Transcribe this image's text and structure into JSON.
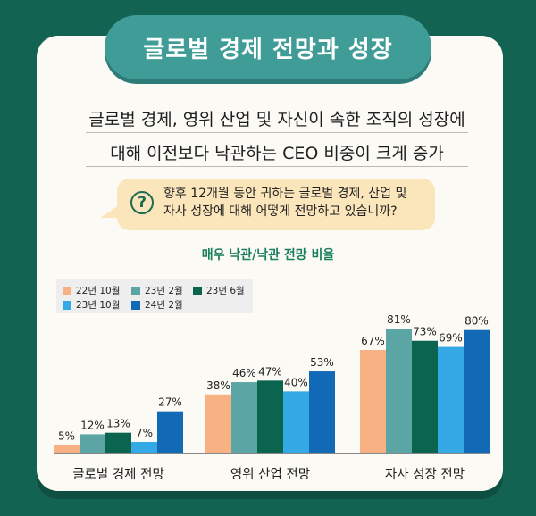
{
  "header": {
    "title": "글로벌 경제 전망과 성장"
  },
  "headline": {
    "line1": "글로벌 경제, 영위 산업 및 자신이 속한 조직의 성장에",
    "line2": "대해 이전보다 낙관하는 CEO 비중이 크게 증가"
  },
  "question": {
    "icon": "question-icon",
    "line1": "향후 12개월 동안 귀하는 글로벌 경제, 산업 및",
    "line2": "자사 성장에 대해 어떻게 전망하고 있습니까?"
  },
  "chart_data": {
    "type": "bar",
    "title": "매우 낙관/낙관 전망 비율",
    "categories": [
      "글로벌 경제 전망",
      "영위 산업 전망",
      "자사 성장 전망"
    ],
    "series": [
      {
        "name": "22년 10월",
        "color": "#f7b183",
        "values": [
          5,
          38,
          67
        ]
      },
      {
        "name": "23년 2월",
        "color": "#5ba5a4",
        "values": [
          12,
          46,
          81
        ]
      },
      {
        "name": "23년 6월",
        "color": "#0b654e",
        "values": [
          13,
          47,
          73
        ]
      },
      {
        "name": "23년 10월",
        "color": "#35a9e5",
        "values": [
          7,
          40,
          69
        ]
      },
      {
        "name": "24년 2월",
        "color": "#1269b6",
        "values": [
          27,
          53,
          80
        ]
      }
    ],
    "value_labels": [
      [
        "5%",
        "38%",
        "67%"
      ],
      [
        "12%",
        "46%",
        "81%"
      ],
      [
        "13%",
        "47%",
        "73%"
      ],
      [
        "7%",
        "40%",
        "69%"
      ],
      [
        "27%",
        "53%",
        "80%"
      ]
    ],
    "ylim": [
      0,
      81
    ],
    "legend": "top-left",
    "grid": false
  }
}
